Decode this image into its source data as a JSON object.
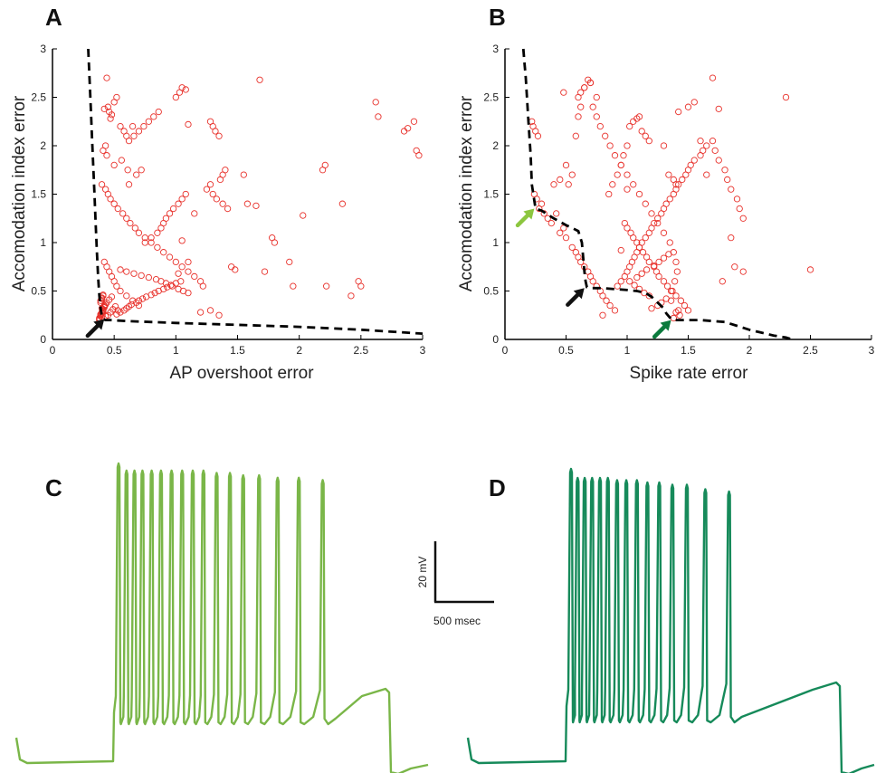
{
  "colors": {
    "points": "#e8302a",
    "front": "#000000",
    "arrow_black": "#111111",
    "arrow_light_green": "#8cc63f",
    "arrow_dark_green": "#0a7a3c",
    "trace_c": "#7ab648",
    "trace_d": "#168a5a"
  },
  "chart_data": [
    {
      "type": "scatter",
      "panel": "A",
      "xlabel": "AP overshoot error",
      "ylabel": "Accomodation index error",
      "xlim": [
        0,
        3
      ],
      "ylim": [
        0,
        3
      ],
      "xticks": [
        "0",
        "0.5",
        "1",
        "1.5",
        "2",
        "2.5",
        "3"
      ],
      "yticks": [
        "0",
        "0.5",
        "1",
        "1.5",
        "2",
        "2.5",
        "3"
      ],
      "marker": "open-circle",
      "points_x": [
        0.44,
        0.45,
        0.46,
        0.42,
        0.48,
        0.5,
        0.52,
        0.55,
        0.58,
        0.6,
        0.62,
        0.65,
        0.47,
        0.43,
        0.41,
        0.44,
        0.5,
        0.56,
        0.61,
        0.4,
        0.43,
        0.45,
        0.47,
        0.5,
        0.53,
        0.57,
        0.6,
        0.63,
        0.67,
        0.7,
        0.75,
        0.8,
        0.85,
        0.9,
        0.95,
        1.0,
        1.05,
        1.1,
        1.15,
        1.2,
        1.22,
        0.42,
        0.44,
        0.46,
        0.48,
        0.5,
        0.52,
        0.55,
        0.6,
        0.65,
        0.7,
        0.55,
        0.6,
        0.66,
        0.72,
        0.78,
        0.84,
        0.88,
        0.92,
        0.97,
        1.02,
        1.06,
        1.1,
        0.38,
        0.39,
        0.4,
        0.41,
        0.42,
        0.43,
        0.39,
        0.4,
        0.41,
        0.38,
        0.39,
        0.4,
        0.41,
        0.42,
        0.39,
        0.4,
        0.41,
        0.38,
        0.4,
        0.39,
        0.41,
        0.4,
        0.42,
        0.44,
        0.46,
        0.48,
        0.45,
        0.47,
        0.49,
        0.51,
        0.53,
        0.43,
        0.52,
        0.55,
        0.58,
        0.6,
        0.62,
        0.64,
        0.68,
        0.7,
        0.73,
        0.76,
        0.8,
        0.83,
        0.86,
        0.9,
        0.93,
        0.96,
        1.0,
        1.04,
        0.75,
        0.8,
        0.85,
        0.88,
        0.9,
        0.92,
        0.95,
        0.98,
        1.02,
        1.05,
        1.08,
        0.62,
        0.68,
        0.72,
        0.66,
        0.7,
        0.74,
        0.78,
        0.82,
        0.86,
        1.0,
        1.03,
        1.05,
        1.08,
        1.1,
        1.28,
        1.3,
        1.32,
        1.35,
        1.36,
        1.38,
        1.4,
        1.28,
        1.25,
        1.3,
        1.33,
        1.38,
        1.42,
        1.55,
        1.58,
        1.65,
        1.78,
        1.8,
        1.92,
        2.03,
        2.19,
        2.21,
        2.22,
        2.35,
        2.42,
        2.48,
        2.5,
        2.62,
        2.64,
        2.85,
        2.88,
        2.93,
        2.95,
        2.97,
        1.2,
        1.28,
        1.45,
        1.48,
        1.72,
        1.68,
        1.35,
        1.15,
        1.1,
        1.05,
        1.02,
        1.95
      ],
      "points_y": [
        2.7,
        2.4,
        2.35,
        2.38,
        2.32,
        2.45,
        2.5,
        2.2,
        2.15,
        2.1,
        2.05,
        2.2,
        2.28,
        2.0,
        1.95,
        1.9,
        1.8,
        1.85,
        1.75,
        1.6,
        1.55,
        1.5,
        1.45,
        1.4,
        1.35,
        1.3,
        1.25,
        1.2,
        1.15,
        1.1,
        1.05,
        1.0,
        0.95,
        0.9,
        0.85,
        0.8,
        0.75,
        0.7,
        0.65,
        0.6,
        0.55,
        0.8,
        0.75,
        0.7,
        0.65,
        0.6,
        0.55,
        0.5,
        0.45,
        0.4,
        0.35,
        0.72,
        0.7,
        0.68,
        0.66,
        0.64,
        0.62,
        0.6,
        0.58,
        0.55,
        0.52,
        0.5,
        0.48,
        0.22,
        0.25,
        0.28,
        0.3,
        0.33,
        0.36,
        0.4,
        0.43,
        0.46,
        0.2,
        0.24,
        0.27,
        0.31,
        0.34,
        0.38,
        0.42,
        0.45,
        0.21,
        0.23,
        0.26,
        0.29,
        0.32,
        0.35,
        0.38,
        0.41,
        0.44,
        0.25,
        0.28,
        0.31,
        0.34,
        0.3,
        0.24,
        0.26,
        0.28,
        0.3,
        0.32,
        0.34,
        0.36,
        0.38,
        0.4,
        0.42,
        0.44,
        0.46,
        0.48,
        0.5,
        0.52,
        0.54,
        0.56,
        0.58,
        0.6,
        1.0,
        1.05,
        1.1,
        1.15,
        1.2,
        1.25,
        1.3,
        1.35,
        1.4,
        1.45,
        1.5,
        1.6,
        1.7,
        1.75,
        2.1,
        2.15,
        2.2,
        2.25,
        2.3,
        2.35,
        2.5,
        2.55,
        2.6,
        2.58,
        2.22,
        2.25,
        2.2,
        2.15,
        2.1,
        1.65,
        1.7,
        1.75,
        1.6,
        1.55,
        1.5,
        1.45,
        1.4,
        1.35,
        1.7,
        1.4,
        1.38,
        1.05,
        1.0,
        0.8,
        1.28,
        1.75,
        1.8,
        0.55,
        1.4,
        0.45,
        0.6,
        0.55,
        2.45,
        2.3,
        2.15,
        2.18,
        2.25,
        1.95,
        1.9,
        0.28,
        0.3,
        0.75,
        0.72,
        0.7,
        2.68,
        0.25,
        1.3,
        0.8,
        1.02,
        0.68,
        0.55
      ],
      "front_x": [
        0.29,
        0.3,
        0.31,
        0.32,
        0.33,
        0.34,
        0.35,
        0.36,
        0.37,
        0.38,
        0.39,
        0.4,
        0.41,
        0.43,
        0.47,
        0.6,
        1.0,
        1.5,
        2.0,
        2.5,
        3.0
      ],
      "front_y": [
        3.0,
        2.7,
        2.4,
        2.1,
        1.8,
        1.5,
        1.2,
        0.9,
        0.65,
        0.45,
        0.32,
        0.24,
        0.21,
        0.2,
        0.2,
        0.19,
        0.17,
        0.15,
        0.13,
        0.1,
        0.06
      ],
      "arrows": [
        {
          "color": "black",
          "x": 0.42,
          "y": 0.21
        }
      ]
    },
    {
      "type": "scatter",
      "panel": "B",
      "xlabel": "Spike rate error",
      "ylabel": "Accomodation index error",
      "xlim": [
        0,
        3
      ],
      "ylim": [
        0,
        3
      ],
      "xticks": [
        "0",
        "0.5",
        "1",
        "1.5",
        "2",
        "2.5",
        "3"
      ],
      "yticks": [
        "0",
        "0.5",
        "1",
        "1.5",
        "2",
        "2.5",
        "3"
      ],
      "marker": "open-circle",
      "points_x": [
        0.22,
        0.23,
        0.25,
        0.27,
        0.24,
        0.26,
        0.3,
        0.28,
        0.32,
        0.35,
        0.38,
        0.42,
        0.45,
        0.48,
        0.5,
        0.52,
        0.55,
        0.58,
        0.6,
        0.62,
        0.65,
        0.68,
        0.7,
        0.72,
        0.75,
        0.78,
        0.8,
        0.83,
        0.86,
        0.9,
        0.92,
        0.95,
        0.98,
        1.0,
        1.02,
        1.04,
        1.06,
        1.08,
        1.1,
        1.12,
        1.15,
        1.18,
        1.2,
        1.22,
        1.25,
        1.28,
        1.3,
        1.32,
        1.35,
        1.38,
        1.4,
        1.42,
        1.45,
        1.48,
        1.5,
        1.52,
        1.55,
        1.6,
        1.62,
        1.65,
        1.7,
        1.72,
        1.75,
        1.8,
        1.82,
        1.85,
        1.9,
        1.92,
        1.95,
        0.6,
        0.62,
        0.65,
        0.68,
        0.7,
        0.72,
        0.75,
        0.78,
        0.82,
        0.86,
        0.9,
        0.95,
        1.0,
        1.05,
        1.1,
        1.15,
        1.2,
        1.25,
        1.3,
        1.35,
        1.38,
        1.4,
        1.41,
        1.39,
        1.37,
        1.36,
        1.42,
        1.43,
        1.38,
        1.4,
        1.2,
        1.25,
        1.28,
        1.32,
        1.18,
        1.14,
        1.1,
        1.06,
        1.02,
        1.08,
        1.12,
        1.16,
        1.22,
        1.26,
        1.3,
        1.34,
        0.95,
        0.98,
        1.0,
        1.03,
        1.05,
        1.08,
        1.1,
        1.13,
        1.16,
        1.18,
        1.22,
        1.24,
        1.26,
        1.3,
        1.33,
        1.36,
        1.4,
        1.44,
        1.47,
        1.5,
        0.8,
        0.85,
        0.88,
        0.92,
        0.95,
        0.97,
        1.0,
        0.58,
        0.6,
        0.62,
        0.75,
        0.7,
        0.65,
        0.48,
        0.5,
        0.55,
        0.4,
        0.45,
        1.0,
        1.02,
        1.05,
        1.08,
        1.1,
        1.12,
        1.15,
        1.18,
        1.3,
        1.34,
        1.38,
        1.4,
        1.42,
        1.5,
        1.55,
        1.6,
        1.65,
        1.85,
        1.88,
        1.95,
        2.3,
        2.5,
        1.75,
        1.7,
        1.78
      ],
      "points_y": [
        2.25,
        2.2,
        2.15,
        2.1,
        1.5,
        1.45,
        1.4,
        1.35,
        1.3,
        1.25,
        1.2,
        1.3,
        1.1,
        1.15,
        1.05,
        1.6,
        0.95,
        0.9,
        0.85,
        0.8,
        0.75,
        0.7,
        0.65,
        0.6,
        0.55,
        0.5,
        0.45,
        0.4,
        0.35,
        0.3,
        0.55,
        0.6,
        0.65,
        0.7,
        0.75,
        0.8,
        0.85,
        0.9,
        0.95,
        1.0,
        1.05,
        1.1,
        1.15,
        1.2,
        1.25,
        1.3,
        1.35,
        1.4,
        1.45,
        1.5,
        1.55,
        1.6,
        1.65,
        1.7,
        1.75,
        1.8,
        1.85,
        1.9,
        1.95,
        2.0,
        2.05,
        1.95,
        1.85,
        1.75,
        1.65,
        1.55,
        1.45,
        1.35,
        1.25,
        2.5,
        2.55,
        2.6,
        2.68,
        2.65,
        2.4,
        2.3,
        2.2,
        2.1,
        2.0,
        1.9,
        1.8,
        1.7,
        1.6,
        1.5,
        1.4,
        1.3,
        1.2,
        1.1,
        1.0,
        0.9,
        0.8,
        0.7,
        0.6,
        0.5,
        0.4,
        0.3,
        0.25,
        0.22,
        0.28,
        0.32,
        0.35,
        0.38,
        0.42,
        0.45,
        0.48,
        0.52,
        0.56,
        0.6,
        0.64,
        0.68,
        0.72,
        0.76,
        0.8,
        0.84,
        0.88,
        0.92,
        1.2,
        1.15,
        1.1,
        1.05,
        1.0,
        0.95,
        0.9,
        0.85,
        0.8,
        0.75,
        0.7,
        0.65,
        0.6,
        0.55,
        0.5,
        0.45,
        0.4,
        0.35,
        0.3,
        0.25,
        1.5,
        1.6,
        1.7,
        1.8,
        1.9,
        2.0,
        2.1,
        2.3,
        2.4,
        2.5,
        2.65,
        2.6,
        2.55,
        1.8,
        1.7,
        1.6,
        1.65,
        1.55,
        2.2,
        2.25,
        2.28,
        2.3,
        2.15,
        2.1,
        2.05,
        2.0,
        1.7,
        1.65,
        1.6,
        2.35,
        2.4,
        2.45,
        2.05,
        1.7,
        1.05,
        0.75,
        0.7,
        2.5,
        0.72,
        2.38,
        2.7,
        0.6,
        0.78,
        0.7
      ],
      "front_x": [
        0.15,
        0.16,
        0.17,
        0.18,
        0.19,
        0.2,
        0.21,
        0.22,
        0.25,
        0.3,
        0.4,
        0.5,
        0.6,
        0.63,
        0.64,
        0.65,
        0.66,
        0.67,
        0.7,
        0.8,
        0.9,
        1.0,
        1.08,
        1.15,
        1.2,
        1.25,
        1.3,
        1.32,
        1.34,
        1.36,
        1.4,
        1.5,
        1.6,
        1.7,
        1.8,
        1.9,
        2.0,
        2.1,
        2.2,
        2.3,
        2.35
      ],
      "front_y": [
        3.0,
        2.85,
        2.7,
        2.5,
        2.3,
        2.1,
        1.9,
        1.6,
        1.35,
        1.33,
        1.25,
        1.18,
        1.12,
        1.0,
        0.85,
        0.7,
        0.6,
        0.54,
        0.53,
        0.53,
        0.52,
        0.51,
        0.5,
        0.48,
        0.44,
        0.38,
        0.32,
        0.27,
        0.24,
        0.21,
        0.2,
        0.2,
        0.2,
        0.19,
        0.18,
        0.14,
        0.1,
        0.07,
        0.04,
        0.02,
        0.0
      ],
      "arrows": [
        {
          "color": "light-green",
          "x": 0.24,
          "y": 1.35
        },
        {
          "color": "black",
          "x": 0.65,
          "y": 0.53
        },
        {
          "color": "dark-green",
          "x": 1.36,
          "y": 0.2
        }
      ]
    },
    {
      "type": "line",
      "panel": "C",
      "description_kind": "voltage-trace",
      "spike_count": 17,
      "spike_times_rel": [
        0.0,
        0.03,
        0.06,
        0.09,
        0.125,
        0.16,
        0.2,
        0.24,
        0.28,
        0.32,
        0.37,
        0.42,
        0.47,
        0.53,
        0.6,
        0.68,
        0.77
      ],
      "spike_heights_rel": [
        1.0,
        0.97,
        0.97,
        0.97,
        0.97,
        0.97,
        0.97,
        0.97,
        0.97,
        0.97,
        0.96,
        0.96,
        0.95,
        0.95,
        0.94,
        0.94,
        0.93
      ]
    },
    {
      "type": "line",
      "panel": "D",
      "description_kind": "voltage-trace",
      "spike_count": 15,
      "spike_times_rel": [
        0.0,
        0.025,
        0.052,
        0.08,
        0.11,
        0.14,
        0.175,
        0.21,
        0.25,
        0.29,
        0.335,
        0.385,
        0.44,
        0.51,
        0.6
      ],
      "spike_heights_rel": [
        1.0,
        0.96,
        0.96,
        0.96,
        0.96,
        0.96,
        0.95,
        0.95,
        0.95,
        0.94,
        0.94,
        0.93,
        0.93,
        0.91,
        0.9
      ]
    }
  ],
  "scalebar": {
    "vertical_label": "20 mV",
    "horizontal_label": "500 msec"
  }
}
